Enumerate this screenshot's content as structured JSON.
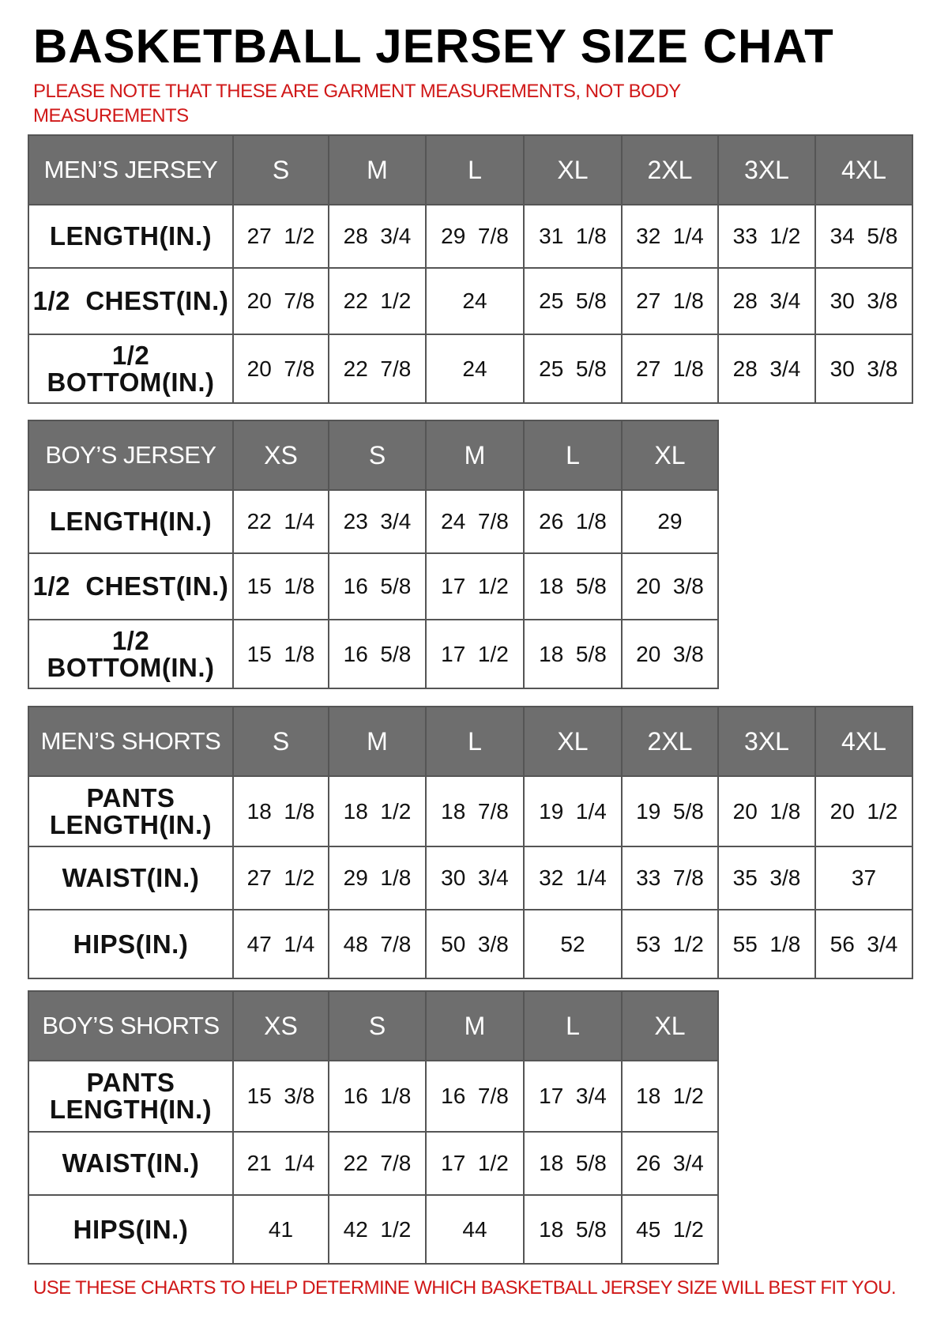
{
  "title": "BASKETBALL JERSEY SIZE CHAT",
  "note": "PLEASE NOTE THAT THESE ARE GARMENT MEASUREMENTS, NOT BODY MEASUREMENTS",
  "footer": "USE THESE CHARTS TO HELP DETERMINE WHICH BASKETBALL JERSEY SIZE WILL BEST FIT YOU.",
  "colors": {
    "header_bg": "#6e6e6e",
    "note_red": "#d01818"
  },
  "tables": [
    {
      "name": "MEN’S JERSEY",
      "sizes": [
        "S",
        "M",
        "L",
        "XL",
        "2XL",
        "3XL",
        "4XL"
      ],
      "rows": [
        {
          "label": "LENGTH(IN.)",
          "values": [
            "27  1/2",
            "28  3/4",
            "29  7/8",
            "31  1/8",
            "32  1/4",
            "33  1/2",
            "34  5/8"
          ]
        },
        {
          "label": "1/2  CHEST(IN.)",
          "values": [
            "20  7/8",
            "22  1/2",
            "24",
            "25  5/8",
            "27  1/8",
            "28  3/4",
            "30  3/8"
          ]
        },
        {
          "label": "1/2  BOTTOM(IN.)",
          "values": [
            "20  7/8",
            "22  7/8",
            "24",
            "25  5/8",
            "27  1/8",
            "28  3/4",
            "30  3/8"
          ]
        }
      ]
    },
    {
      "name": "BOY’S JERSEY",
      "sizes": [
        "XS",
        "S",
        "M",
        "L",
        "XL"
      ],
      "rows": [
        {
          "label": "LENGTH(IN.)",
          "values": [
            "22  1/4",
            "23  3/4",
            "24  7/8",
            "26  1/8",
            "29"
          ]
        },
        {
          "label": "1/2  CHEST(IN.)",
          "values": [
            "15  1/8",
            "16  5/8",
            "17  1/2",
            "18  5/8",
            "20  3/8"
          ]
        },
        {
          "label": "1/2  BOTTOM(IN.)",
          "values": [
            "15  1/8",
            "16  5/8",
            "17  1/2",
            "18  5/8",
            "20  3/8"
          ]
        }
      ]
    },
    {
      "name": "MEN’S SHORTS",
      "sizes": [
        "S",
        "M",
        "L",
        "XL",
        "2XL",
        "3XL",
        "4XL"
      ],
      "rows": [
        {
          "label": "PANTS LENGTH(IN.)",
          "values": [
            "18  1/8",
            "18  1/2",
            "18  7/8",
            "19  1/4",
            "19  5/8",
            "20  1/8",
            "20  1/2"
          ]
        },
        {
          "label": "WAIST(IN.)",
          "values": [
            "27  1/2",
            "29  1/8",
            "30  3/4",
            "32  1/4",
            "33  7/8",
            "35  3/8",
            "37"
          ]
        },
        {
          "label": "HIPS(IN.)",
          "values": [
            "47  1/4",
            "48  7/8",
            "50  3/8",
            "52",
            "53  1/2",
            "55  1/8",
            "56  3/4"
          ]
        }
      ]
    },
    {
      "name": "BOY’S SHORTS",
      "sizes": [
        "XS",
        "S",
        "M",
        "L",
        "XL"
      ],
      "rows": [
        {
          "label": "PANTS LENGTH(IN.)",
          "values": [
            "15  3/8",
            "16  1/8",
            "16  7/8",
            "17  3/4",
            "18  1/2"
          ]
        },
        {
          "label": "WAIST(IN.)",
          "values": [
            "21  1/4",
            "22  7/8",
            "17  1/2",
            "18  5/8",
            "26  3/4"
          ]
        },
        {
          "label": "HIPS(IN.)",
          "values": [
            "41",
            "42  1/2",
            "44",
            "18  5/8",
            "45  1/2"
          ]
        }
      ]
    }
  ]
}
